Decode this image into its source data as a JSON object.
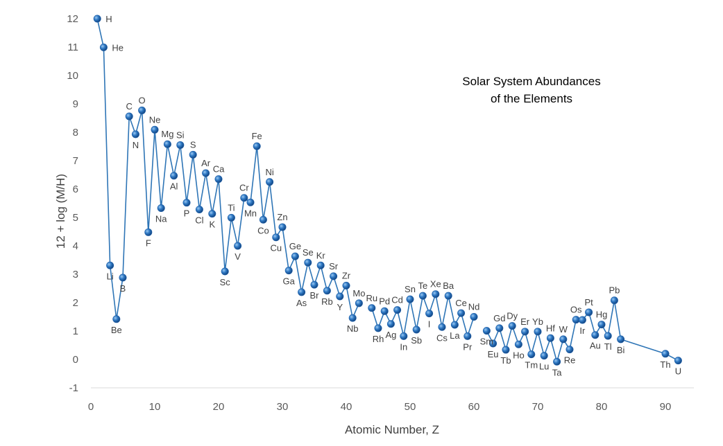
{
  "chart_data": {
    "type": "line",
    "title_lines": [
      "Solar System Abundances",
      "of the Elements"
    ],
    "xlabel": "Atomic Number, Z",
    "ylabel": "12 + log (M/H)",
    "xlim": [
      0,
      92
    ],
    "ylim": [
      -1,
      12
    ],
    "xticks": [
      0,
      10,
      20,
      30,
      40,
      50,
      60,
      70,
      80,
      90
    ],
    "yticks": [
      -1,
      0,
      1,
      2,
      3,
      4,
      5,
      6,
      7,
      8,
      9,
      10,
      11,
      12
    ],
    "grid": false,
    "marker_color": "#1f5fa8",
    "line_color": "#2e75b6",
    "segments": [
      [
        {
          "z": 1,
          "v": 12.0,
          "el": "H"
        },
        {
          "z": 2,
          "v": 10.99,
          "el": "He"
        },
        {
          "z": 3,
          "v": 3.31,
          "el": "Li"
        },
        {
          "z": 4,
          "v": 1.42,
          "el": "Be"
        },
        {
          "z": 5,
          "v": 2.88,
          "el": "B"
        },
        {
          "z": 6,
          "v": 8.56,
          "el": "C"
        },
        {
          "z": 7,
          "v": 7.93,
          "el": "N"
        },
        {
          "z": 8,
          "v": 8.77,
          "el": "O"
        },
        {
          "z": 9,
          "v": 4.48,
          "el": "F"
        },
        {
          "z": 10,
          "v": 8.09,
          "el": "Ne"
        },
        {
          "z": 11,
          "v": 5.33,
          "el": "Na"
        },
        {
          "z": 12,
          "v": 7.58,
          "el": "Mg"
        },
        {
          "z": 13,
          "v": 6.47,
          "el": "Al"
        },
        {
          "z": 14,
          "v": 7.55,
          "el": "Si"
        },
        {
          "z": 15,
          "v": 5.52,
          "el": "P"
        },
        {
          "z": 16,
          "v": 7.21,
          "el": "S"
        },
        {
          "z": 17,
          "v": 5.28,
          "el": "Cl"
        },
        {
          "z": 18,
          "v": 6.56,
          "el": "Ar"
        },
        {
          "z": 19,
          "v": 5.13,
          "el": "K"
        },
        {
          "z": 20,
          "v": 6.35,
          "el": "Ca"
        },
        {
          "z": 21,
          "v": 3.1,
          "el": "Sc"
        },
        {
          "z": 22,
          "v": 4.99,
          "el": "Ti"
        },
        {
          "z": 23,
          "v": 4.0,
          "el": "V"
        },
        {
          "z": 24,
          "v": 5.69,
          "el": "Cr"
        },
        {
          "z": 25,
          "v": 5.53,
          "el": "Mn"
        },
        {
          "z": 26,
          "v": 7.51,
          "el": "Fe"
        },
        {
          "z": 27,
          "v": 4.92,
          "el": "Co"
        },
        {
          "z": 28,
          "v": 6.25,
          "el": "Ni"
        },
        {
          "z": 29,
          "v": 4.3,
          "el": "Cu"
        },
        {
          "z": 30,
          "v": 4.66,
          "el": "Zn"
        },
        {
          "z": 31,
          "v": 3.13,
          "el": "Ga"
        },
        {
          "z": 32,
          "v": 3.63,
          "el": "Ge"
        },
        {
          "z": 33,
          "v": 2.37,
          "el": "As"
        },
        {
          "z": 34,
          "v": 3.41,
          "el": "Se"
        },
        {
          "z": 35,
          "v": 2.63,
          "el": "Br"
        },
        {
          "z": 36,
          "v": 3.31,
          "el": "Kr"
        },
        {
          "z": 37,
          "v": 2.42,
          "el": "Rb"
        },
        {
          "z": 38,
          "v": 2.93,
          "el": "Sr"
        },
        {
          "z": 39,
          "v": 2.22,
          "el": "Y"
        },
        {
          "z": 40,
          "v": 2.6,
          "el": "Zr"
        },
        {
          "z": 41,
          "v": 1.46,
          "el": "Nb"
        },
        {
          "z": 42,
          "v": 1.98,
          "el": "Mo"
        }
      ],
      [
        {
          "z": 44,
          "v": 1.81,
          "el": "Ru"
        },
        {
          "z": 45,
          "v": 1.1,
          "el": "Rh"
        },
        {
          "z": 46,
          "v": 1.7,
          "el": "Pd"
        },
        {
          "z": 47,
          "v": 1.25,
          "el": "Ag"
        },
        {
          "z": 48,
          "v": 1.74,
          "el": "Cd"
        },
        {
          "z": 49,
          "v": 0.82,
          "el": "In"
        },
        {
          "z": 50,
          "v": 2.12,
          "el": "Sn"
        },
        {
          "z": 51,
          "v": 1.05,
          "el": "Sb"
        },
        {
          "z": 52,
          "v": 2.24,
          "el": "Te"
        },
        {
          "z": 53,
          "v": 1.62,
          "el": "I"
        },
        {
          "z": 54,
          "v": 2.3,
          "el": "Xe"
        },
        {
          "z": 55,
          "v": 1.14,
          "el": "Cs"
        },
        {
          "z": 56,
          "v": 2.24,
          "el": "Ba"
        },
        {
          "z": 57,
          "v": 1.22,
          "el": "La"
        },
        {
          "z": 58,
          "v": 1.63,
          "el": "Ce"
        },
        {
          "z": 59,
          "v": 0.82,
          "el": "Pr"
        },
        {
          "z": 60,
          "v": 1.5,
          "el": "Nd"
        }
      ],
      [
        {
          "z": 62,
          "v": 1.01,
          "el": "Sm"
        },
        {
          "z": 63,
          "v": 0.56,
          "el": "Eu"
        },
        {
          "z": 64,
          "v": 1.1,
          "el": "Gd"
        },
        {
          "z": 65,
          "v": 0.34,
          "el": "Tb"
        },
        {
          "z": 66,
          "v": 1.18,
          "el": "Dy"
        },
        {
          "z": 67,
          "v": 0.53,
          "el": "Ho"
        },
        {
          "z": 68,
          "v": 0.98,
          "el": "Er"
        },
        {
          "z": 69,
          "v": 0.18,
          "el": "Tm"
        },
        {
          "z": 70,
          "v": 0.98,
          "el": "Yb"
        },
        {
          "z": 71,
          "v": 0.13,
          "el": "Lu"
        },
        {
          "z": 72,
          "v": 0.75,
          "el": "Hf"
        },
        {
          "z": 73,
          "v": -0.08,
          "el": "Ta"
        },
        {
          "z": 74,
          "v": 0.71,
          "el": "W"
        },
        {
          "z": 75,
          "v": 0.35,
          "el": "Re"
        },
        {
          "z": 76,
          "v": 1.4,
          "el": "Os"
        },
        {
          "z": 77,
          "v": 1.39,
          "el": "Ir"
        },
        {
          "z": 78,
          "v": 1.66,
          "el": "Pt"
        },
        {
          "z": 79,
          "v": 0.86,
          "el": "Au"
        },
        {
          "z": 80,
          "v": 1.23,
          "el": "Hg"
        },
        {
          "z": 81,
          "v": 0.83,
          "el": "Tl"
        },
        {
          "z": 82,
          "v": 2.08,
          "el": "Pb"
        },
        {
          "z": 83,
          "v": 0.71,
          "el": "Bi"
        },
        {
          "z": 90,
          "v": 0.2,
          "el": "Th"
        },
        {
          "z": 92,
          "v": -0.04,
          "el": "U"
        }
      ]
    ]
  }
}
